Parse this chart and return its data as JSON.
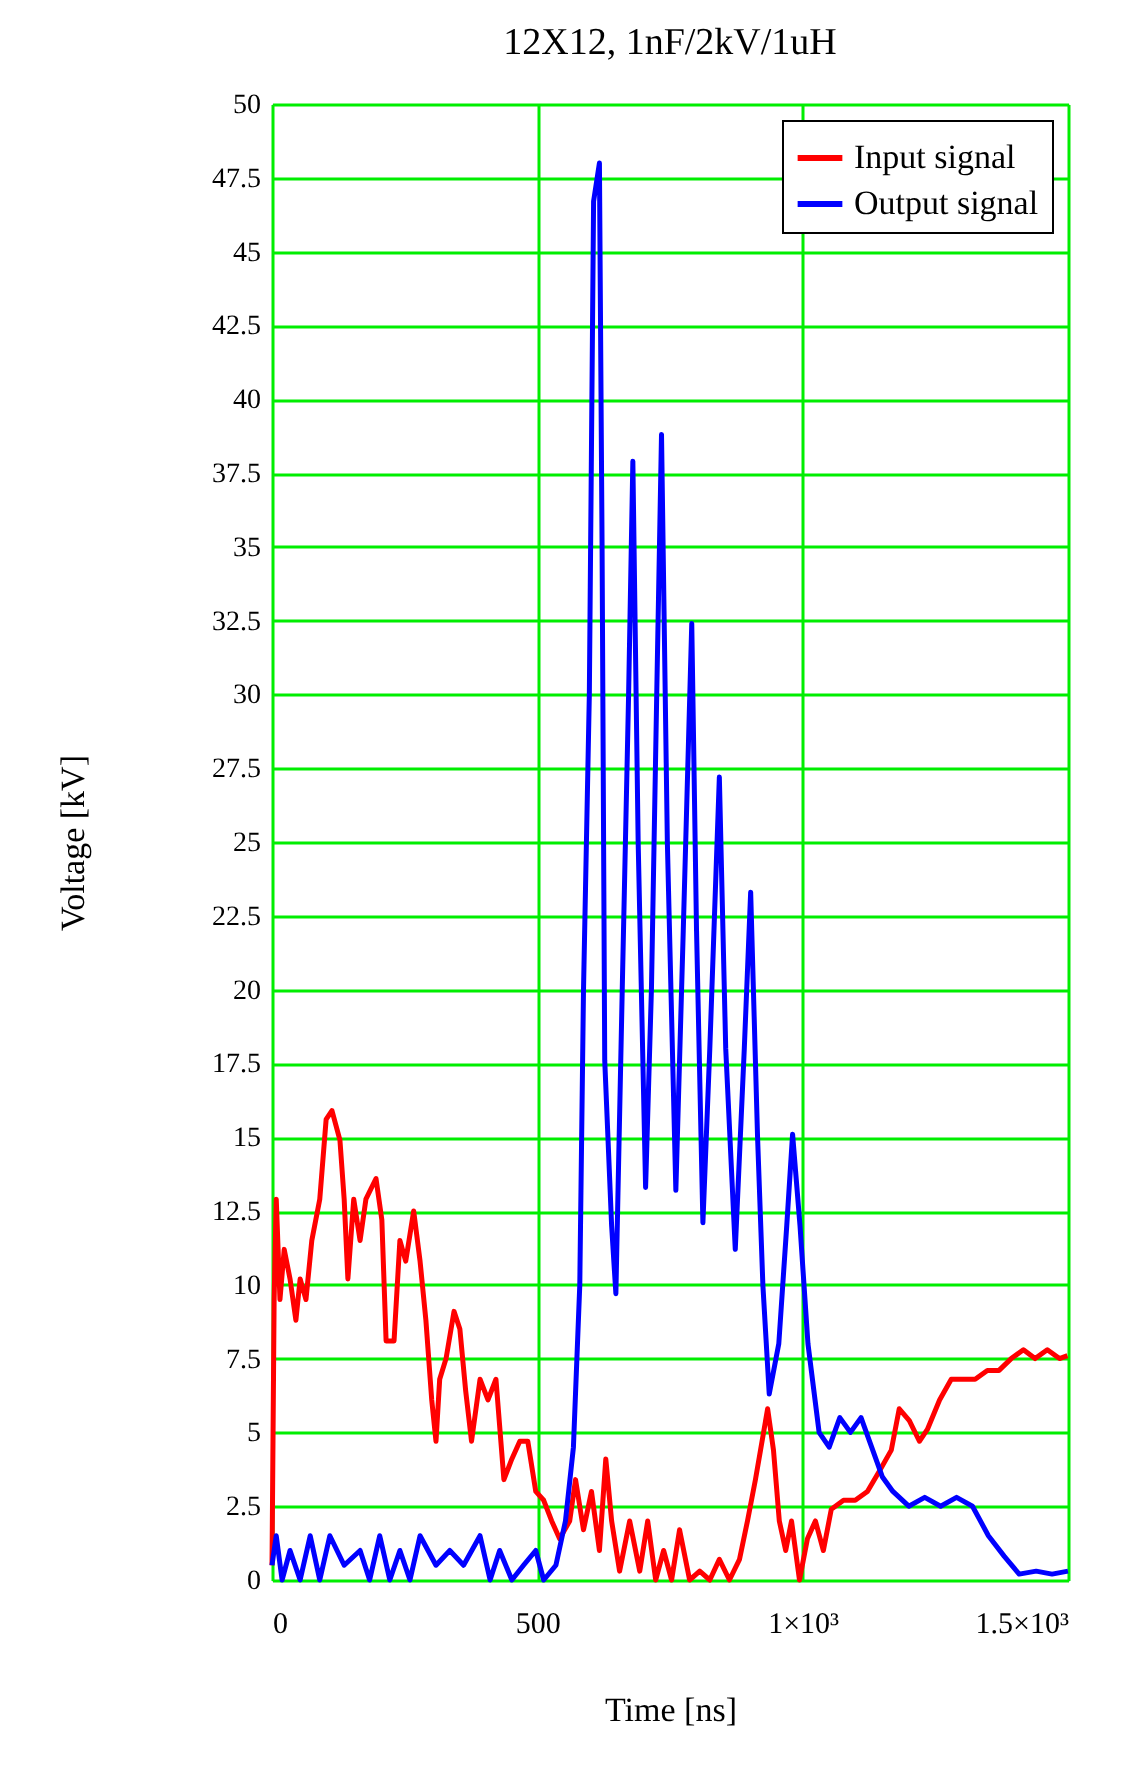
{
  "chart_data": {
    "type": "line",
    "title": "12X12, 1nF/2kV/1uH",
    "xlabel": "Time [ns]",
    "ylabel": "Voltage [kV]",
    "xlim": [
      0,
      1500
    ],
    "xticks": [
      0,
      500,
      {
        "value": 1000,
        "label": "1×10³"
      },
      {
        "value": 1500,
        "label": "1.5×10³"
      }
    ],
    "ylim": [
      0,
      50
    ],
    "yticks": [
      0,
      2.5,
      5,
      7.5,
      10,
      12.5,
      15,
      17.5,
      20,
      22.5,
      25,
      27.5,
      30,
      32.5,
      35,
      37.5,
      40,
      42.5,
      45,
      47.5,
      50
    ],
    "grid": true,
    "legend": "top right",
    "marker": "none",
    "line_style": "solid",
    "series": [
      {
        "name": "Input signal",
        "color": "#ff0000",
        "x": [
          0,
          4,
          8,
          15,
          23,
          34,
          45,
          53,
          64,
          75,
          90,
          102,
          113,
          128,
          136,
          143,
          154,
          166,
          177,
          196,
          207,
          215,
          230,
          241,
          252,
          267,
          279,
          290,
          301,
          309,
          316,
          328,
          343,
          354,
          365,
          376,
          392,
          407,
          422,
          437,
          452,
          467,
          482,
          497,
          512,
          527,
          542,
          561,
          572,
          587,
          602,
          617,
          629,
          640,
          655,
          674,
          693,
          708,
          723,
          738,
          753,
          768,
          787,
          806,
          825,
          843,
          862,
          881,
          896,
          911,
          934,
          945,
          956,
          968,
          979,
          994,
          1009,
          1024,
          1039,
          1054,
          1077,
          1099,
          1122,
          1145,
          1167,
          1182,
          1201,
          1220,
          1235,
          1258,
          1280,
          1303,
          1325,
          1348,
          1370,
          1393,
          1416,
          1438,
          1461,
          1484,
          1499
        ],
        "values": [
          0.5,
          9.5,
          12.9,
          9.5,
          11.2,
          10.2,
          8.8,
          10.2,
          9.5,
          11.5,
          12.9,
          15.6,
          15.9,
          14.9,
          12.9,
          10.2,
          12.9,
          11.5,
          12.9,
          13.6,
          12.2,
          8.1,
          8.1,
          11.5,
          10.8,
          12.5,
          10.8,
          8.8,
          6.1,
          4.7,
          6.8,
          7.5,
          9.1,
          8.5,
          6.4,
          4.7,
          6.8,
          6.1,
          6.8,
          3.4,
          4.1,
          4.7,
          4.7,
          3.0,
          2.7,
          2.0,
          1.4,
          2.0,
          3.4,
          1.7,
          3.0,
          1.0,
          4.1,
          2.0,
          0.3,
          2.0,
          0.3,
          2.0,
          0,
          1.0,
          0,
          1.7,
          0,
          0.3,
          0,
          0.7,
          0,
          0.7,
          2.0,
          3.4,
          5.8,
          4.4,
          2.0,
          1.0,
          2.0,
          0,
          1.4,
          2.0,
          1.0,
          2.4,
          2.7,
          2.7,
          3.0,
          3.7,
          4.4,
          5.8,
          5.4,
          4.7,
          5.1,
          6.1,
          6.8,
          6.8,
          6.8,
          7.1,
          7.1,
          7.5,
          7.8,
          7.5,
          7.8,
          7.5,
          7.6
        ]
      },
      {
        "name": "Output signal",
        "color": "#0000ff",
        "x": [
          0,
          8,
          19,
          34,
          53,
          72,
          90,
          109,
          136,
          166,
          184,
          203,
          222,
          241,
          260,
          279,
          309,
          335,
          361,
          392,
          411,
          429,
          452,
          474,
          497,
          512,
          535,
          553,
          568,
          580,
          587,
          598,
          606,
          617,
          622,
          627,
          640,
          648,
          660,
          672,
          680,
          690,
          704,
          715,
          725,
          734,
          745,
          761,
          775,
          791,
          800,
          812,
          825,
          843,
          855,
          873,
          890,
          902,
          915,
          925,
          937,
          955,
          970,
          981,
          995,
          1010,
          1031,
          1050,
          1070,
          1090,
          1110,
          1130,
          1150,
          1170,
          1200,
          1230,
          1260,
          1290,
          1320,
          1350,
          1380,
          1408,
          1440,
          1470,
          1500
        ],
        "values": [
          0.5,
          1.5,
          0,
          1,
          0,
          1.5,
          0,
          1.5,
          0.5,
          1,
          0,
          1.5,
          0,
          1,
          0,
          1.5,
          0.5,
          1,
          0.5,
          1.5,
          0,
          1,
          0,
          0.5,
          1,
          0,
          0.5,
          2,
          4.5,
          10,
          20,
          30,
          46.7,
          48.0,
          35,
          17.6,
          12,
          9.7,
          20,
          30,
          37.9,
          25,
          13.3,
          20,
          30,
          38.8,
          25,
          13.2,
          22,
          32.4,
          22,
          12.1,
          18,
          27.2,
          18,
          11.2,
          18,
          23.3,
          15,
          10,
          6.3,
          8,
          12,
          15.1,
          12,
          8,
          5.0,
          4.5,
          5.5,
          5,
          5.5,
          4.5,
          3.5,
          3,
          2.5,
          2.8,
          2.5,
          2.8,
          2.5,
          1.5,
          0.8,
          0.2,
          0.3,
          0.2,
          0.3
        ]
      }
    ]
  }
}
